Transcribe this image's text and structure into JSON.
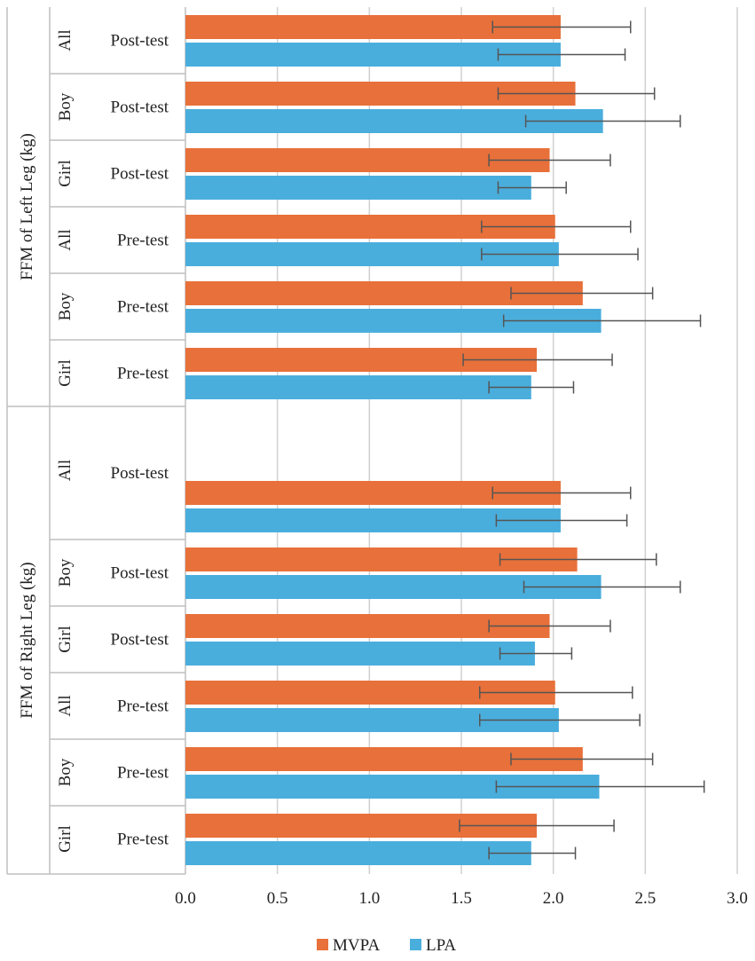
{
  "chart_data": {
    "type": "bar",
    "orientation": "horizontal",
    "xlim": [
      0,
      3.0
    ],
    "x_ticks": [
      "0.0",
      "0.5",
      "1.0",
      "1.5",
      "2.0",
      "2.5",
      "3.0"
    ],
    "grid": true,
    "legend_position": "bottom",
    "colors": {
      "MVPA": "#E8703A",
      "LPA": "#4AAEDD",
      "error": "#555555",
      "grid": "#D0D0D0",
      "divider": "#BFBFBF"
    },
    "sections": [
      {
        "axis_title": "FFM of Left Leg (kg)",
        "rows": [
          {
            "group": "All",
            "test": "Post-test",
            "mvpa": 2.04,
            "mvpa_lo": 1.67,
            "mvpa_hi": 2.42,
            "lpa": 2.04,
            "lpa_lo": 1.7,
            "lpa_hi": 2.39
          },
          {
            "group": "Boy",
            "test": "Post-test",
            "mvpa": 2.12,
            "mvpa_lo": 1.7,
            "mvpa_hi": 2.55,
            "lpa": 2.27,
            "lpa_lo": 1.85,
            "lpa_hi": 2.69
          },
          {
            "group": "Girl",
            "test": "Post-test",
            "mvpa": 1.98,
            "mvpa_lo": 1.65,
            "mvpa_hi": 2.31,
            "lpa": 1.88,
            "lpa_lo": 1.7,
            "lpa_hi": 2.07
          },
          {
            "group": "All",
            "test": "Pre-test",
            "mvpa": 2.01,
            "mvpa_lo": 1.61,
            "mvpa_hi": 2.42,
            "lpa": 2.03,
            "lpa_lo": 1.61,
            "lpa_hi": 2.46
          },
          {
            "group": "Boy",
            "test": "Pre-test",
            "mvpa": 2.16,
            "mvpa_lo": 1.77,
            "mvpa_hi": 2.54,
            "lpa": 2.26,
            "lpa_lo": 1.73,
            "lpa_hi": 2.8
          },
          {
            "group": "Girl",
            "test": "Pre-test",
            "mvpa": 1.91,
            "mvpa_lo": 1.51,
            "mvpa_hi": 2.32,
            "lpa": 1.88,
            "lpa_lo": 1.65,
            "lpa_hi": 2.11
          }
        ]
      },
      {
        "axis_title": "FFM of Right Leg (kg)",
        "rows": [
          {
            "group": "All",
            "test": "Post-test",
            "mvpa": 2.04,
            "mvpa_lo": 1.67,
            "mvpa_hi": 2.42,
            "lpa": 2.04,
            "lpa_lo": 1.69,
            "lpa_hi": 2.4
          },
          {
            "group": "Boy",
            "test": "Post-test",
            "mvpa": 2.13,
            "mvpa_lo": 1.71,
            "mvpa_hi": 2.56,
            "lpa": 2.26,
            "lpa_lo": 1.84,
            "lpa_hi": 2.69
          },
          {
            "group": "Girl",
            "test": "Post-test",
            "mvpa": 1.98,
            "mvpa_lo": 1.65,
            "mvpa_hi": 2.31,
            "lpa": 1.9,
            "lpa_lo": 1.71,
            "lpa_hi": 2.1
          },
          {
            "group": "All",
            "test": "Pre-test",
            "mvpa": 2.01,
            "mvpa_lo": 1.6,
            "mvpa_hi": 2.43,
            "lpa": 2.03,
            "lpa_lo": 1.6,
            "lpa_hi": 2.47
          },
          {
            "group": "Boy",
            "test": "Pre-test",
            "mvpa": 2.16,
            "mvpa_lo": 1.77,
            "mvpa_hi": 2.54,
            "lpa": 2.25,
            "lpa_lo": 1.69,
            "lpa_hi": 2.82
          },
          {
            "group": "Girl",
            "test": "Pre-test",
            "mvpa": 1.91,
            "mvpa_lo": 1.49,
            "mvpa_hi": 2.33,
            "lpa": 1.88,
            "lpa_lo": 1.65,
            "lpa_hi": 2.12
          }
        ]
      }
    ],
    "legend": [
      {
        "key": "mvpa",
        "label": "MVPA"
      },
      {
        "key": "lpa",
        "label": "LPA"
      }
    ]
  }
}
